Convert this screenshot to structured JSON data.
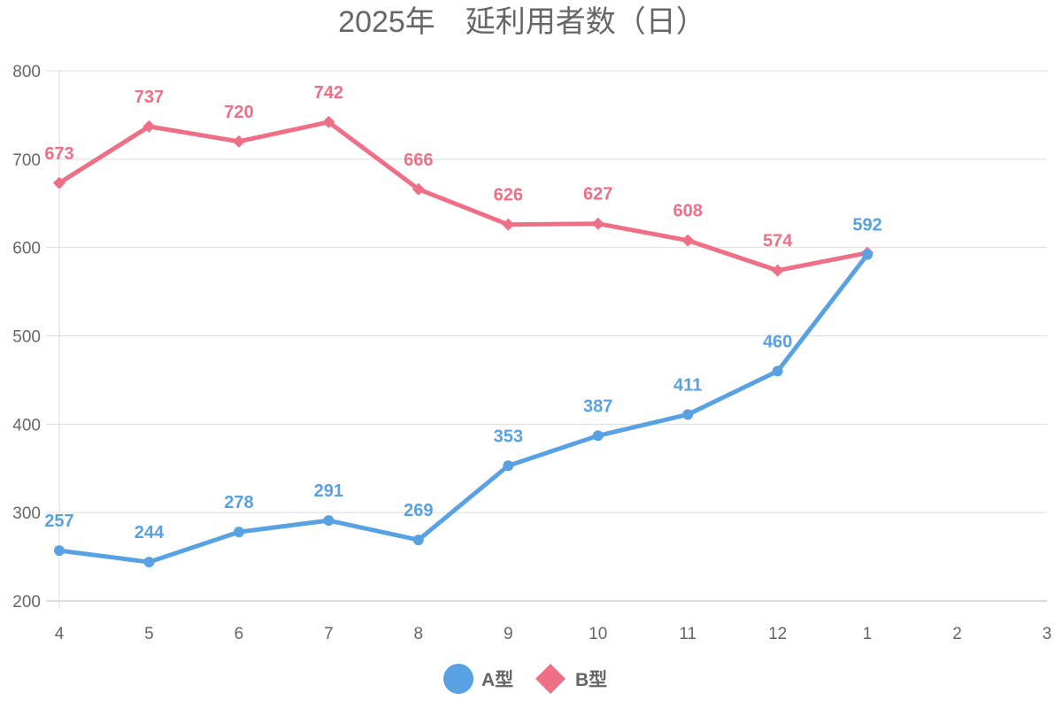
{
  "chart_data": {
    "type": "line",
    "title": "2025年　延利用者数（日）",
    "xlabel": "",
    "ylabel": "",
    "categories": [
      "4",
      "5",
      "6",
      "7",
      "8",
      "9",
      "10",
      "11",
      "12",
      "1",
      "2",
      "3"
    ],
    "ylim": [
      200,
      800
    ],
    "yticks": [
      "200",
      "300",
      "400",
      "500",
      "600",
      "700",
      "800"
    ],
    "grid": true,
    "legend_position": "bottom",
    "series": [
      {
        "name": "A型",
        "color": "#58a1e3",
        "marker": "circle",
        "values": [
          257,
          244,
          278,
          291,
          269,
          353,
          387,
          411,
          460,
          592,
          null,
          null
        ]
      },
      {
        "name": "B型",
        "color": "#ee6f86",
        "marker": "diamond",
        "values": [
          673,
          737,
          720,
          742,
          666,
          626,
          627,
          608,
          574,
          594,
          null,
          null
        ]
      }
    ]
  }
}
